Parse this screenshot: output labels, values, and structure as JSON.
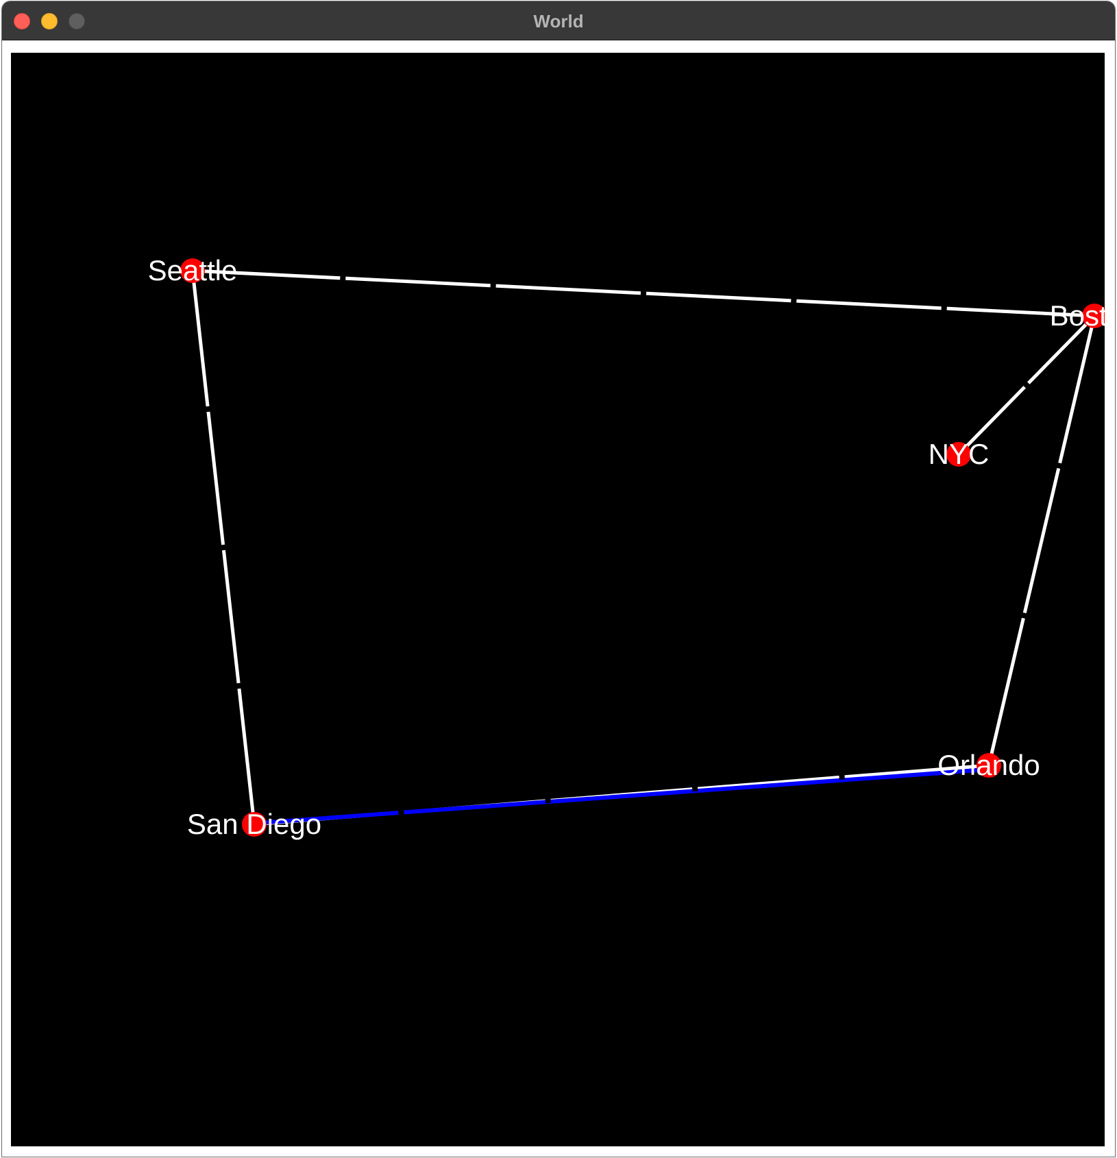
{
  "window": {
    "title": "World",
    "controls": [
      "close",
      "minimize",
      "maximize"
    ]
  },
  "colors": {
    "background": "#000000",
    "city": "#ff0000",
    "road": "#ffffff",
    "highlighted_route": "#0000ff",
    "label": "#ffffff",
    "title_bar": "#383838",
    "close": "#ff5f57",
    "minimize": "#febc2e",
    "maximize": "#5f5f5f"
  },
  "map": {
    "cities": [
      {
        "id": "seattle",
        "name": "Seattle"
      },
      {
        "id": "boston",
        "name": "Boston"
      },
      {
        "id": "nyc",
        "name": "NYC"
      },
      {
        "id": "orlando",
        "name": "Orlando"
      },
      {
        "id": "san-diego",
        "name": "San Diego"
      }
    ],
    "roads": [
      {
        "from": "seattle",
        "to": "boston",
        "highlighted": false
      },
      {
        "from": "seattle",
        "to": "san-diego",
        "highlighted": false
      },
      {
        "from": "boston",
        "to": "nyc",
        "highlighted": false
      },
      {
        "from": "boston",
        "to": "orlando",
        "highlighted": false
      },
      {
        "from": "san-diego",
        "to": "orlando",
        "highlighted": true
      }
    ]
  }
}
